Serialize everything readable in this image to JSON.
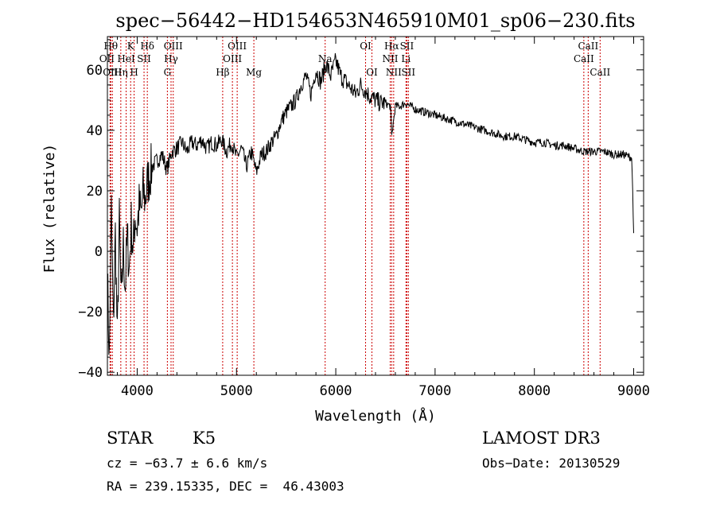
{
  "chart_data": {
    "type": "line",
    "title": "spec−56442−HD154653N465910M01_sp06−230.fits",
    "xlabel": "Wavelength (Å)",
    "ylabel": "Flux (relative)",
    "xlim": [
      3700,
      9100
    ],
    "ylim": [
      -41,
      71
    ],
    "xticks": [
      4000,
      5000,
      6000,
      7000,
      8000,
      9000
    ],
    "yticks": [
      -40,
      -20,
      0,
      20,
      40,
      60
    ],
    "xtick_labels": [
      "4000",
      "5000",
      "6000",
      "7000",
      "8000",
      "9000"
    ],
    "ytick_labels": [
      "−40",
      "−20",
      "0",
      "20",
      "40",
      "60"
    ],
    "grid": false,
    "series": [
      {
        "color": "#000000",
        "x": [
          3700,
          3720,
          3740,
          3760,
          3780,
          3800,
          3820,
          3840,
          3860,
          3880,
          3900,
          3920,
          3940,
          3960,
          3980,
          4000,
          4020,
          4040,
          4060,
          4080,
          4100,
          4150,
          4200,
          4250,
          4300,
          4350,
          4400,
          4450,
          4500,
          4550,
          4600,
          4650,
          4700,
          4750,
          4800,
          4850,
          4900,
          4950,
          5000,
          5050,
          5100,
          5150,
          5200,
          5250,
          5300,
          5350,
          5400,
          5450,
          5500,
          5550,
          5600,
          5650,
          5700,
          5750,
          5800,
          5850,
          5900,
          5950,
          6000,
          6050,
          6100,
          6150,
          6200,
          6250,
          6300,
          6350,
          6400,
          6450,
          6500,
          6550,
          6563,
          6600,
          6650,
          6700,
          6750,
          6800,
          6900,
          7000,
          7100,
          7200,
          7300,
          7400,
          7500,
          7600,
          7700,
          7800,
          7900,
          8000,
          8100,
          8200,
          8300,
          8400,
          8500,
          8600,
          8700,
          8800,
          8900,
          8980,
          8990,
          9000
        ],
        "y": [
          -8,
          -36,
          14,
          -25,
          6,
          -30,
          10,
          -18,
          2,
          -12,
          5,
          -6,
          9,
          0,
          12,
          8,
          15,
          12,
          20,
          17,
          22,
          28,
          30,
          32,
          27,
          33,
          34,
          36,
          33,
          36,
          35,
          37,
          34,
          36,
          35,
          37,
          33,
          36,
          31,
          34,
          28,
          33,
          26,
          32,
          33,
          36,
          38,
          43,
          46,
          48,
          50,
          55,
          58,
          52,
          60,
          56,
          62,
          58,
          63,
          58,
          56,
          54,
          52,
          55,
          53,
          51,
          50,
          49,
          49,
          48,
          38,
          48,
          48,
          49,
          48,
          47,
          46,
          45,
          44,
          43,
          42,
          41,
          40,
          39,
          38,
          38,
          37,
          36,
          36,
          35,
          35,
          34,
          33,
          33,
          33,
          32,
          32,
          31,
          20,
          6
        ]
      }
    ],
    "line_markers": [
      {
        "wavelength": 3734,
        "label": "Hθ",
        "row": 1,
        "shift": 0
      },
      {
        "wavelength": 3727,
        "label": "OII",
        "row": 2,
        "shift": -4
      },
      {
        "wavelength": 3750,
        "label": "OIII",
        "row": 3,
        "shift": 0
      },
      {
        "wavelength": 3835,
        "label": "Hη",
        "row": 3,
        "shift": 0
      },
      {
        "wavelength": 3889,
        "label": "HeI",
        "row": 2,
        "shift": 0
      },
      {
        "wavelength": 3934,
        "label": "K",
        "row": 1,
        "shift": 0
      },
      {
        "wavelength": 3969,
        "label": "H",
        "row": 3,
        "shift": 0
      },
      {
        "wavelength": 4069,
        "label": "SII",
        "row": 2,
        "shift": 0
      },
      {
        "wavelength": 4102,
        "label": "Hδ",
        "row": 1,
        "shift": 0
      },
      {
        "wavelength": 4304,
        "label": "G",
        "row": 3,
        "shift": 0
      },
      {
        "wavelength": 4341,
        "label": "Hγ",
        "row": 2,
        "shift": 0
      },
      {
        "wavelength": 4363,
        "label": "OIII",
        "row": 1,
        "shift": 0
      },
      {
        "wavelength": 4861,
        "label": "Hβ",
        "row": 3,
        "shift": 0
      },
      {
        "wavelength": 4959,
        "label": "OIII",
        "row": 2,
        "shift": 0
      },
      {
        "wavelength": 5007,
        "label": "OIII",
        "row": 1,
        "shift": 0
      },
      {
        "wavelength": 5175,
        "label": "Mg",
        "row": 3,
        "shift": 0
      },
      {
        "wavelength": 5893,
        "label": "Na",
        "row": 2,
        "shift": 0
      },
      {
        "wavelength": 6300,
        "label": "OI",
        "row": 1,
        "shift": 0
      },
      {
        "wavelength": 6364,
        "label": "OI",
        "row": 3,
        "shift": 0
      },
      {
        "wavelength": 6548,
        "label": "NII",
        "row": 2,
        "shift": 0
      },
      {
        "wavelength": 6563,
        "label": "Hα",
        "row": 1,
        "shift": 0
      },
      {
        "wavelength": 6583,
        "label": "NII",
        "row": 3,
        "shift": 0
      },
      {
        "wavelength": 6707,
        "label": "Li",
        "row": 2,
        "shift": 0
      },
      {
        "wavelength": 6716,
        "label": "SII",
        "row": 1,
        "shift": 0
      },
      {
        "wavelength": 6731,
        "label": "SII",
        "row": 3,
        "shift": 0
      },
      {
        "wavelength": 8498,
        "label": "CaII",
        "row": 2,
        "shift": 0
      },
      {
        "wavelength": 8542,
        "label": "CaII",
        "row": 1,
        "shift": 0
      },
      {
        "wavelength": 8662,
        "label": "CaII",
        "row": 3,
        "shift": 0
      }
    ],
    "line_marker_color": "#cc0000"
  },
  "footer": {
    "object_class": "STAR",
    "subclass": "K5",
    "redshift_text": "cz = −63.7 ± 6.6 km/s",
    "coords_text": "RA = 239.15335, DEC =  46.43003",
    "survey": "LAMOST DR3",
    "obs_date_text": "Obs−Date: 20130529"
  }
}
